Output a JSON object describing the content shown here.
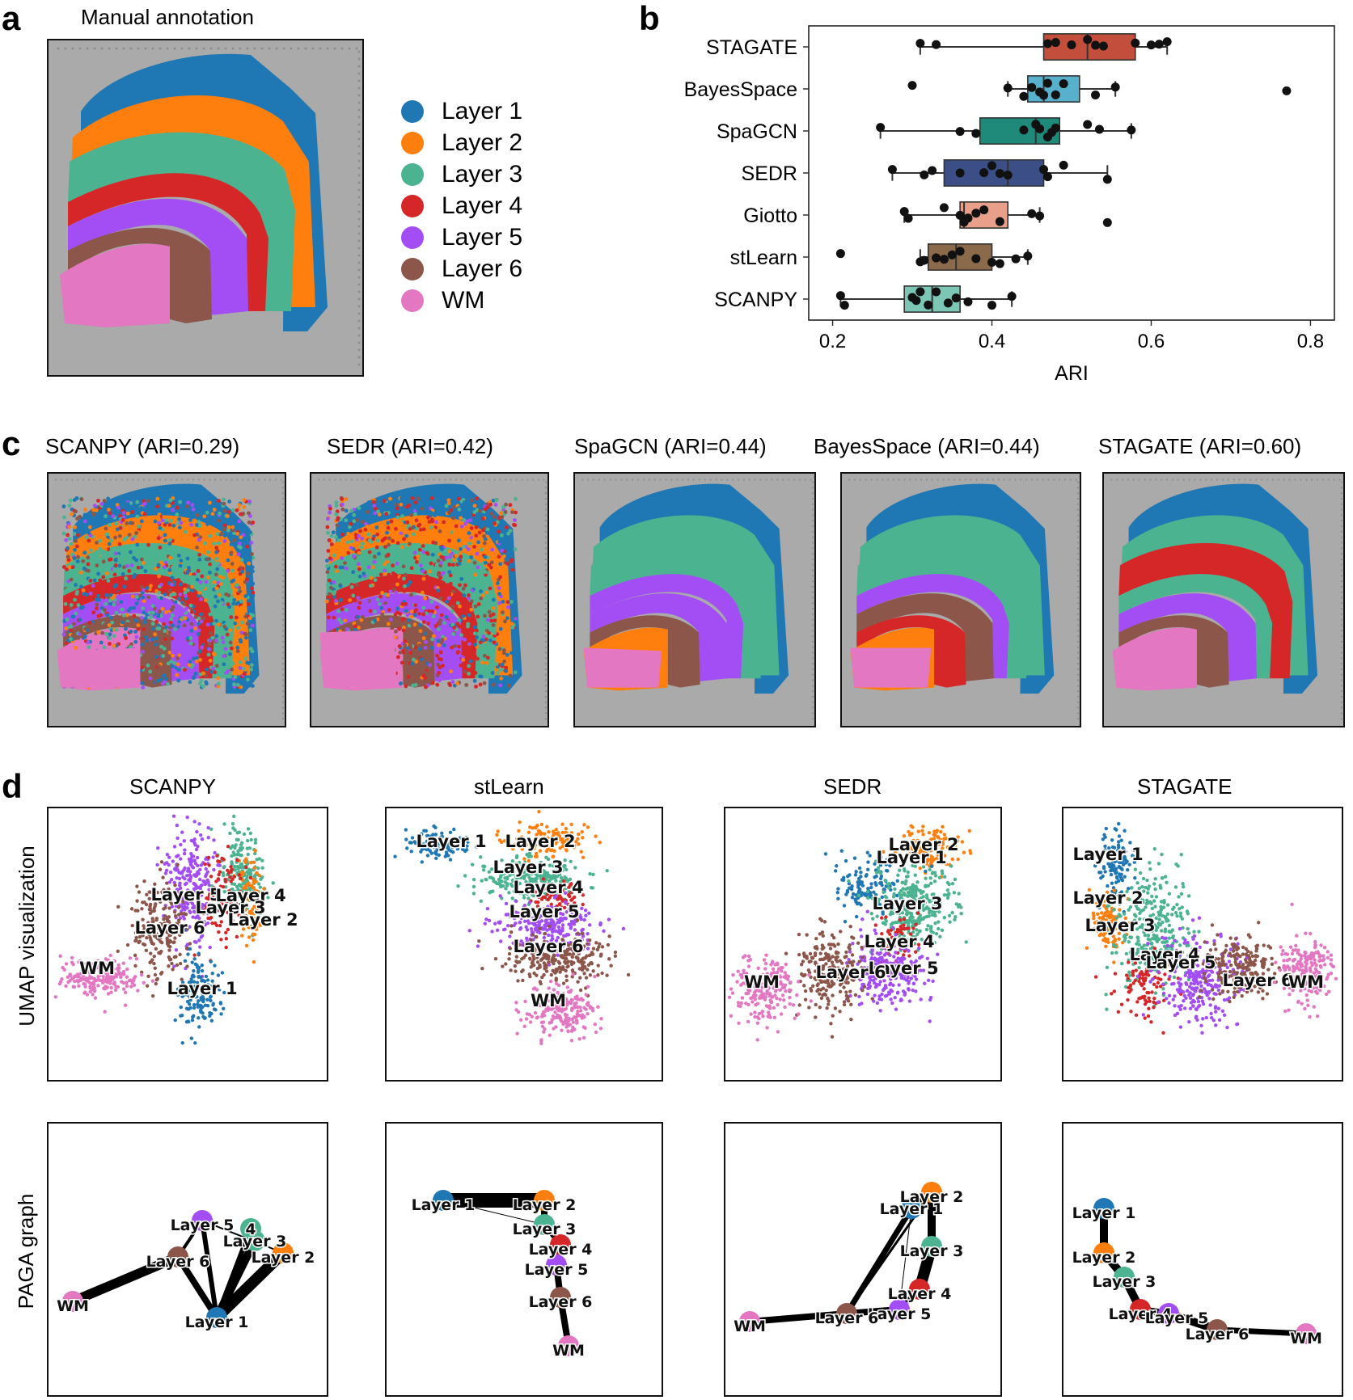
{
  "panel_letters": {
    "a": "a",
    "b": "b",
    "c": "c",
    "d": "d"
  },
  "panel_a": {
    "title": "Manual annotation",
    "legend": [
      {
        "label": "Layer 1",
        "color": "#1f77b4"
      },
      {
        "label": "Layer 2",
        "color": "#ff7f0e"
      },
      {
        "label": "Layer 3",
        "color": "#4cb391"
      },
      {
        "label": "Layer 4",
        "color": "#d62728"
      },
      {
        "label": "Layer 5",
        "color": "#a34ef4"
      },
      {
        "label": "Layer 6",
        "color": "#8c564b"
      },
      {
        "label": "WM",
        "color": "#e377c2"
      }
    ]
  },
  "colors": {
    "layer1": "#1f77b4",
    "layer2": "#ff7f0e",
    "layer3": "#4cb391",
    "layer4": "#d62728",
    "layer5": "#a34ef4",
    "layer6": "#8c564b",
    "wm": "#e377c2",
    "tissue_bg": "#a9aaa9"
  },
  "chart_data": {
    "type": "box",
    "title": "",
    "xlabel": "ARI",
    "ylabel": "",
    "xlim": [
      0.17,
      0.83
    ],
    "xticks": [
      0.2,
      0.4,
      0.6,
      0.8
    ],
    "xtick_labels": [
      "0.2",
      "0.4",
      "0.6",
      "0.8"
    ],
    "categories": [
      "STAGATE",
      "BayesSpace",
      "SpaGCN",
      "SEDR",
      "Giotto",
      "stLearn",
      "SCANPY"
    ],
    "series": [
      {
        "name": "STAGATE",
        "color": "#c44e3c",
        "q1": 0.465,
        "median": 0.52,
        "q3": 0.58,
        "whisker_low": 0.31,
        "whisker_high": 0.62,
        "points": [
          0.31,
          0.33,
          0.47,
          0.5,
          0.52,
          0.53,
          0.54,
          0.58,
          0.6,
          0.61,
          0.62,
          0.48
        ]
      },
      {
        "name": "BayesSpace",
        "color": "#57b0cc",
        "q1": 0.445,
        "median": 0.465,
        "q3": 0.51,
        "whisker_low": 0.42,
        "whisker_high": 0.555,
        "points": [
          0.3,
          0.42,
          0.44,
          0.45,
          0.46,
          0.47,
          0.48,
          0.49,
          0.53,
          0.555,
          0.77,
          0.465
        ]
      },
      {
        "name": "SpaGCN",
        "color": "#1f8a7a",
        "q1": 0.385,
        "median": 0.455,
        "q3": 0.485,
        "whisker_low": 0.26,
        "whisker_high": 0.575,
        "points": [
          0.26,
          0.36,
          0.38,
          0.44,
          0.46,
          0.47,
          0.48,
          0.52,
          0.535,
          0.575,
          0.455,
          0.475
        ]
      },
      {
        "name": "SEDR",
        "color": "#3b4f86",
        "q1": 0.34,
        "median": 0.42,
        "q3": 0.465,
        "whisker_low": 0.275,
        "whisker_high": 0.545,
        "points": [
          0.275,
          0.315,
          0.325,
          0.39,
          0.4,
          0.42,
          0.47,
          0.49,
          0.545,
          0.36,
          0.41,
          0.465
        ]
      },
      {
        "name": "Giotto",
        "color": "#e8a08a",
        "q1": 0.36,
        "median": 0.365,
        "q3": 0.42,
        "whisker_low": 0.29,
        "whisker_high": 0.46,
        "points": [
          0.29,
          0.295,
          0.34,
          0.36,
          0.37,
          0.38,
          0.39,
          0.41,
          0.45,
          0.46,
          0.545,
          0.365
        ]
      },
      {
        "name": "stLearn",
        "color": "#8b6a4b",
        "q1": 0.32,
        "median": 0.355,
        "q3": 0.4,
        "whisker_low": 0.31,
        "whisker_high": 0.445,
        "points": [
          0.21,
          0.31,
          0.315,
          0.33,
          0.35,
          0.36,
          0.38,
          0.4,
          0.41,
          0.43,
          0.445,
          0.34
        ]
      },
      {
        "name": "SCANPY",
        "color": "#7cc6b5",
        "q1": 0.29,
        "median": 0.325,
        "q3": 0.36,
        "whisker_low": 0.21,
        "whisker_high": 0.425,
        "points": [
          0.21,
          0.215,
          0.3,
          0.305,
          0.31,
          0.32,
          0.33,
          0.345,
          0.355,
          0.37,
          0.4,
          0.425
        ]
      }
    ]
  },
  "panel_c": [
    {
      "title": "SCANPY (ARI=0.29)",
      "method": "scanpy"
    },
    {
      "title": "SEDR (ARI=0.42)",
      "method": "sedr"
    },
    {
      "title": "SpaGCN (ARI=0.44)",
      "method": "spagcn"
    },
    {
      "title": "BayesSpace (ARI=0.44)",
      "method": "bayesspace"
    },
    {
      "title": "STAGATE (ARI=0.60)",
      "method": "stagate"
    }
  ],
  "panel_d": {
    "row_labels": {
      "umap": "UMAP visualization",
      "paga": "PAGA graph"
    },
    "methods": [
      {
        "title": "SCANPY",
        "umap_labels": [
          "Layer 5",
          "Layer 4",
          "Layer 3",
          "Layer 2",
          "Layer 6",
          "WM",
          "Layer 1"
        ],
        "paga_labels": [
          "Layer 5",
          "4",
          "Layer 3",
          "Layer 2",
          "Layer 6",
          "WM",
          "Layer 1"
        ]
      },
      {
        "title": "stLearn",
        "umap_labels": [
          "Layer 1",
          "Layer 2",
          "Layer 3",
          "Layer 4",
          "Layer 5",
          "Layer 6",
          "WM"
        ],
        "paga_labels": [
          "Layer 1",
          "Layer 2",
          "Layer 3",
          "Layer 4",
          "Layer 5",
          "Layer 6",
          "WM"
        ]
      },
      {
        "title": "SEDR",
        "umap_labels": [
          "Layer 2",
          "Layer 1",
          "Layer 3",
          "Layer 4",
          "Layer 5",
          "Layer 6",
          "WM"
        ],
        "paga_labels": [
          "Layer 2",
          "Layer 1",
          "Layer 3",
          "Layer 4",
          "Layer 5",
          "Layer 6",
          "WM"
        ]
      },
      {
        "title": "STAGATE",
        "umap_labels": [
          "Layer 1",
          "Layer 2",
          "Layer 3",
          "Layer 4",
          "Layer 5",
          "Layer 6",
          "WM"
        ],
        "paga_labels": [
          "Layer 1",
          "Layer 2",
          "Layer 3",
          "Layer 4",
          "Layer 5",
          "Layer 6",
          "WM"
        ]
      }
    ]
  }
}
